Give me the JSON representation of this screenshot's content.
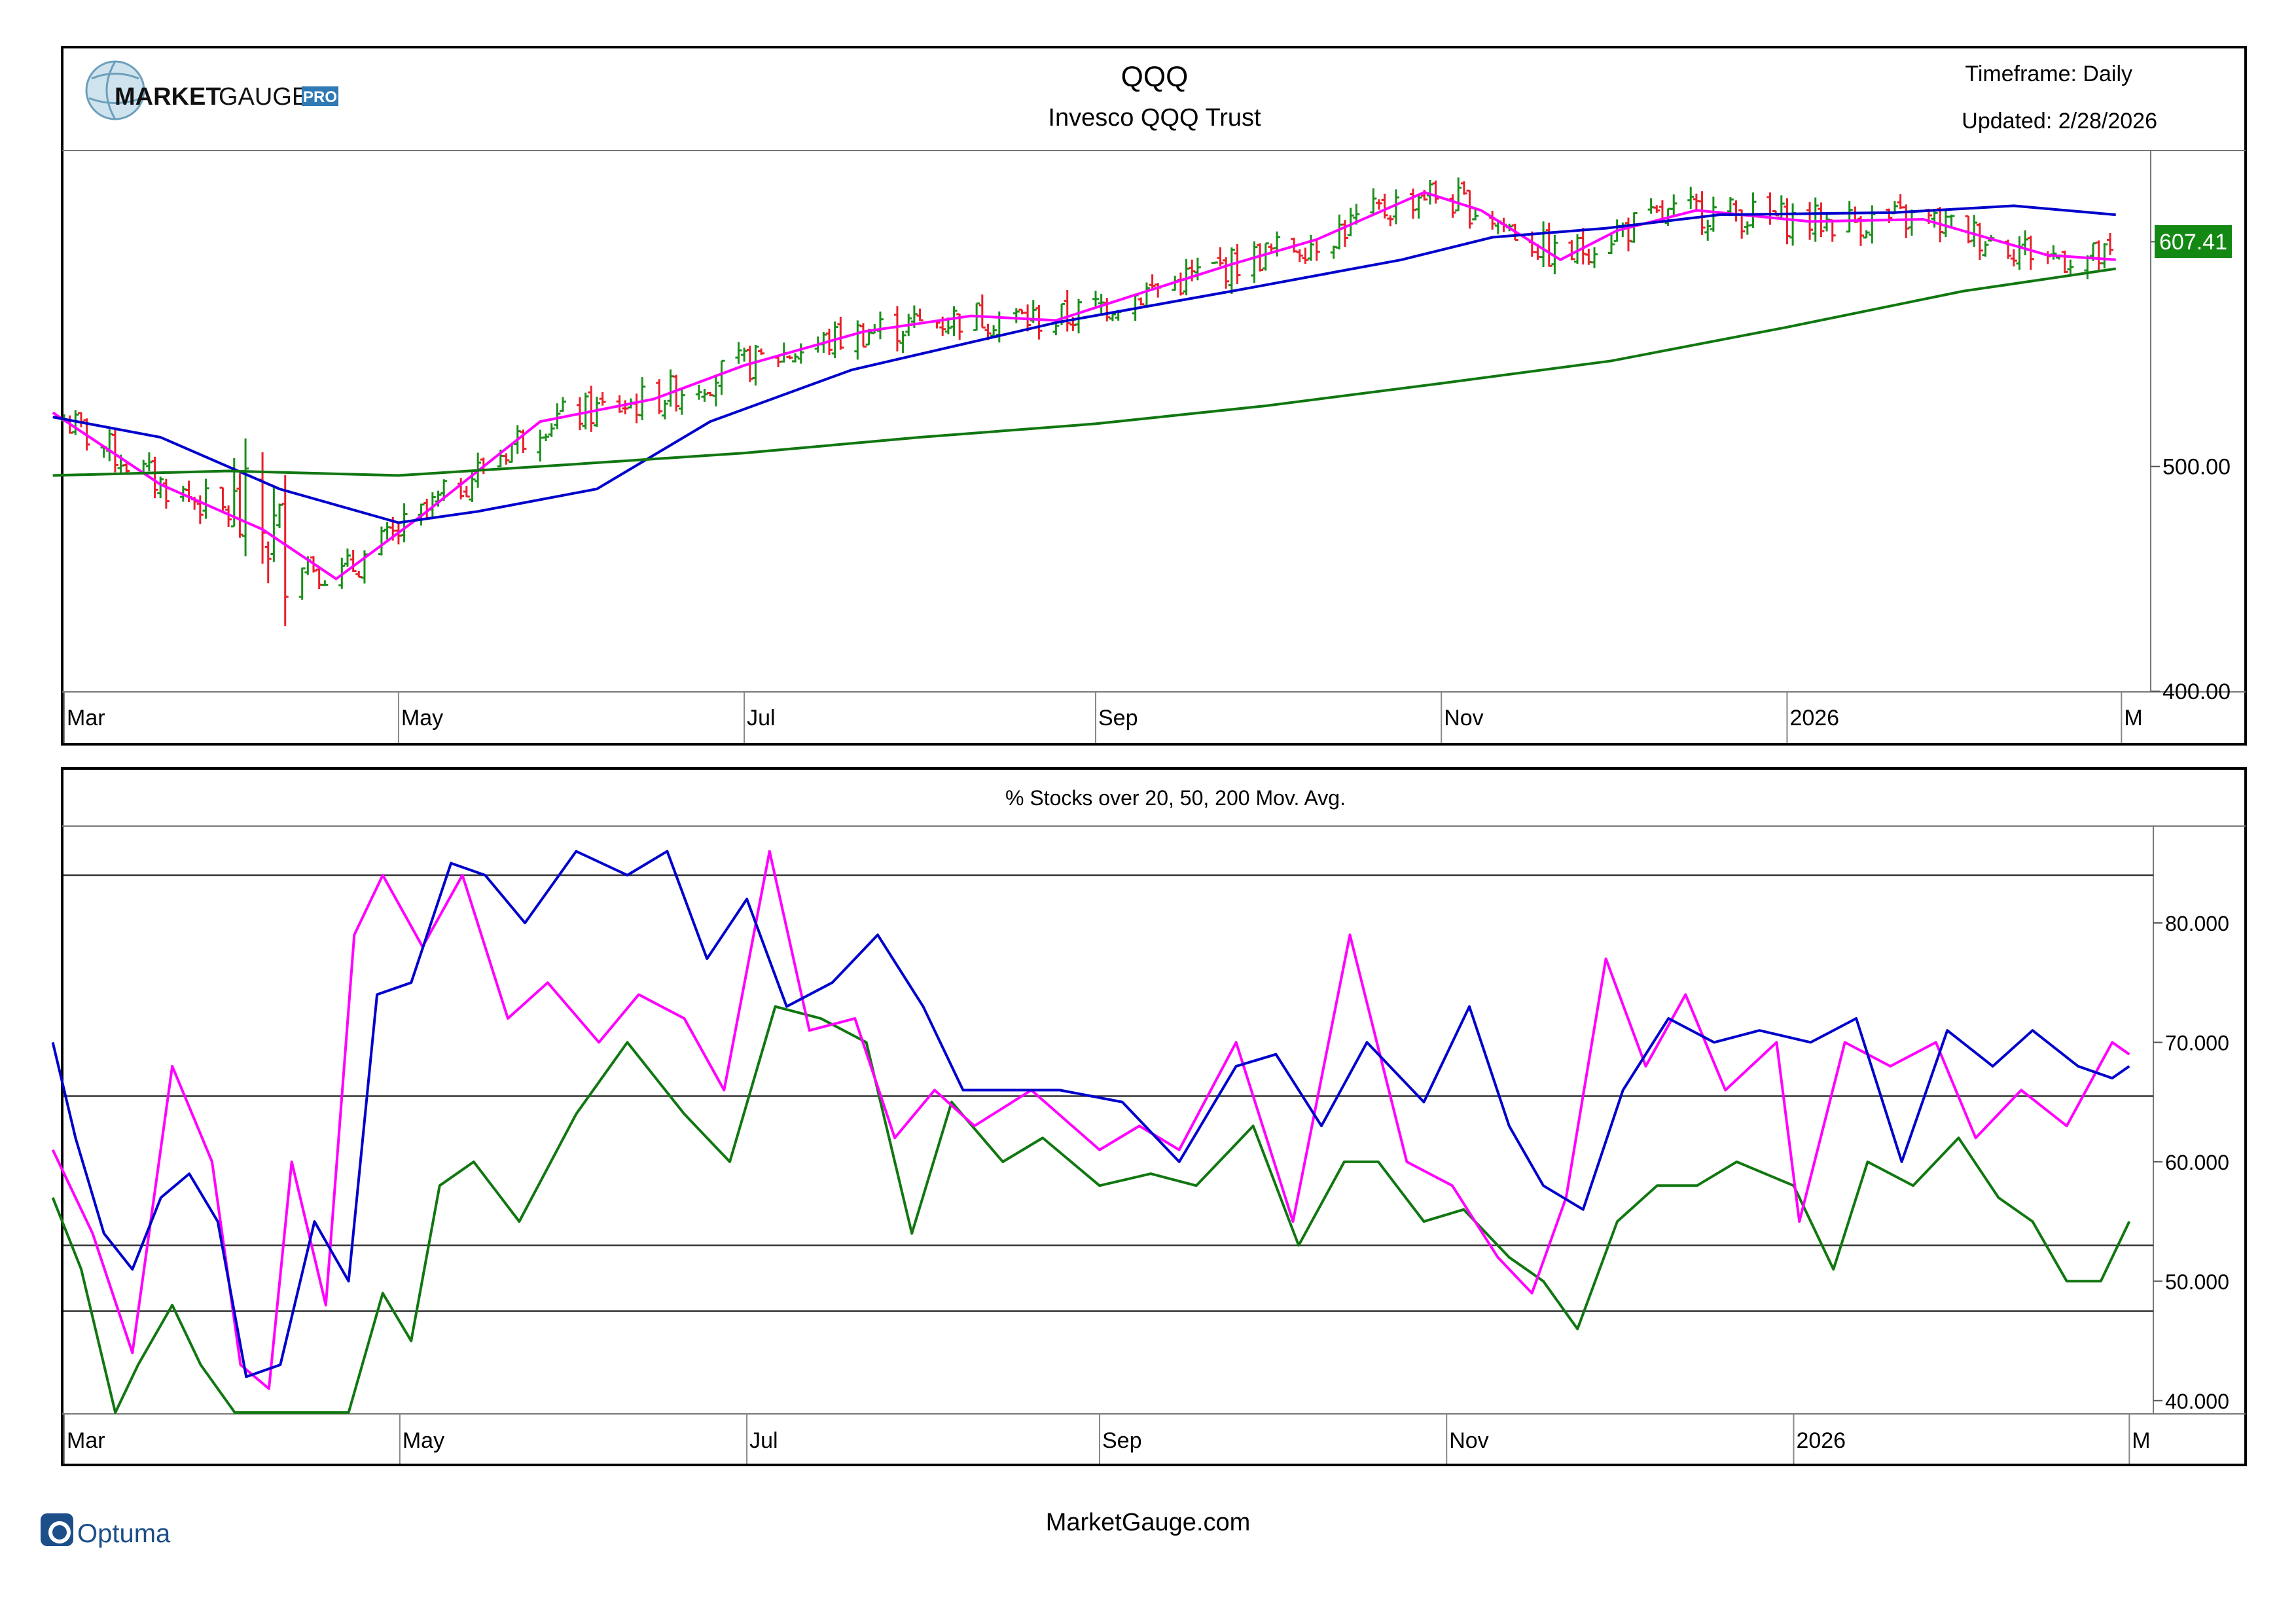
{
  "header": {
    "logo_text_bold": "MARKET",
    "logo_text_light": "GAUGE",
    "logo_badge": "PRO",
    "symbol": "QQQ",
    "name": "Invesco QQQ Trust",
    "timeframe": "Timeframe: Daily",
    "updated": "Updated: 2/28/2026"
  },
  "footer": {
    "brand": "Optuma",
    "site": "MarketGauge.com"
  },
  "colors": {
    "up_bar": "#1a8f1a",
    "down_bar": "#e8202a",
    "ma20": "#ff00ff",
    "ma50": "#0000cc",
    "ma200": "#117711",
    "pct20": "#ff00ff",
    "pct50": "#0000cc",
    "pct200": "#117711",
    "price_badge": "#138813"
  },
  "x_axis_labels": [
    "Mar",
    "May",
    "Jul",
    "Sep",
    "Nov",
    "2026",
    "M"
  ],
  "chart_data": [
    {
      "type": "bar",
      "subtype": "ohlc",
      "title": "QQQ",
      "subtitle": "Invesco QQQ Trust",
      "last_price_label": "607.41",
      "ylim": [
        400,
        640
      ],
      "yticks": [
        "600.00",
        "500.00",
        "400.00"
      ],
      "ytick_values": [
        600,
        500,
        400
      ],
      "x_range": [
        "2025-03-03",
        "2026-03-02"
      ],
      "legend": "none",
      "series": [
        {
          "role": "ma20",
          "x": [
            "2025-03-01",
            "2025-03-20",
            "2025-04-07",
            "2025-04-20",
            "2025-05-05",
            "2025-05-26",
            "2025-06-15",
            "2025-07-01",
            "2025-07-22",
            "2025-08-10",
            "2025-08-25",
            "2025-09-10",
            "2025-09-25",
            "2025-10-10",
            "2025-10-29",
            "2025-11-08",
            "2025-11-22",
            "2025-12-02",
            "2025-12-16",
            "2026-01-05",
            "2026-01-25",
            "2026-02-05",
            "2026-02-16",
            "2026-02-28"
          ],
          "values": [
            524,
            492,
            472,
            450,
            478,
            520,
            530,
            545,
            560,
            567,
            565,
            578,
            590,
            601,
            622,
            614,
            592,
            605,
            614,
            609,
            610,
            602,
            594,
            592
          ]
        },
        {
          "role": "ma50",
          "x": [
            "2025-03-01",
            "2025-03-20",
            "2025-04-10",
            "2025-05-01",
            "2025-05-15",
            "2025-06-05",
            "2025-06-25",
            "2025-07-20",
            "2025-08-25",
            "2025-09-25",
            "2025-10-25",
            "2025-11-10",
            "2025-11-30",
            "2025-12-20",
            "2026-01-20",
            "2026-02-10",
            "2026-02-28"
          ],
          "values": [
            522,
            513,
            490,
            475,
            480,
            490,
            520,
            543,
            564,
            578,
            592,
            602,
            606,
            612,
            613,
            616,
            612
          ]
        },
        {
          "role": "ma200",
          "x": [
            "2025-03-01",
            "2025-04-01",
            "2025-05-01",
            "2025-06-01",
            "2025-07-01",
            "2025-08-01",
            "2025-09-01",
            "2025-10-01",
            "2025-11-01",
            "2025-12-01",
            "2026-01-01",
            "2026-02-01",
            "2026-02-28"
          ],
          "values": [
            496,
            498,
            496,
            501,
            506,
            513,
            519,
            527,
            537,
            547,
            562,
            578,
            588
          ]
        }
      ]
    },
    {
      "type": "line",
      "title": "% Stocks over 20, 50, 200 Mov. Avg.",
      "ylim": [
        39,
        88
      ],
      "yticks": [
        "80.000",
        "70.000",
        "60.000",
        "50.000",
        "40.000"
      ],
      "ytick_values": [
        80,
        70,
        60,
        50,
        40
      ],
      "reference_lines": [
        84,
        65.5,
        53,
        47.5
      ],
      "x_range": [
        "2025-03-03",
        "2026-03-02"
      ],
      "legend": "none",
      "series": [
        {
          "role": "pct20",
          "x": [
            "2025-03-01",
            "2025-03-08",
            "2025-03-15",
            "2025-03-22",
            "2025-03-29",
            "2025-04-03",
            "2025-04-08",
            "2025-04-12",
            "2025-04-18",
            "2025-04-23",
            "2025-04-28",
            "2025-05-05",
            "2025-05-12",
            "2025-05-20",
            "2025-05-27",
            "2025-06-05",
            "2025-06-12",
            "2025-06-20",
            "2025-06-27",
            "2025-07-05",
            "2025-07-12",
            "2025-07-20",
            "2025-07-27",
            "2025-08-03",
            "2025-08-10",
            "2025-08-20",
            "2025-09-01",
            "2025-09-08",
            "2025-09-15",
            "2025-09-25",
            "2025-10-05",
            "2025-10-15",
            "2025-10-25",
            "2025-11-02",
            "2025-11-10",
            "2025-11-16",
            "2025-11-22",
            "2025-11-29",
            "2025-12-06",
            "2025-12-13",
            "2025-12-20",
            "2025-12-29",
            "2026-01-02",
            "2026-01-10",
            "2026-01-18",
            "2026-01-26",
            "2026-02-02",
            "2026-02-10",
            "2026-02-18",
            "2026-02-26",
            "2026-03-01"
          ],
          "values": [
            61,
            54,
            44,
            68,
            60,
            43,
            41,
            60,
            48,
            79,
            84,
            78,
            84,
            72,
            75,
            70,
            74,
            72,
            66,
            86,
            71,
            72,
            62,
            66,
            63,
            66,
            61,
            63,
            61,
            70,
            55,
            79,
            60,
            58,
            52,
            49,
            57,
            77,
            68,
            74,
            66,
            70,
            55,
            70,
            68,
            70,
            62,
            66,
            63,
            70,
            69
          ]
        },
        {
          "role": "pct50",
          "x": [
            "2025-03-01",
            "2025-03-05",
            "2025-03-10",
            "2025-03-15",
            "2025-03-20",
            "2025-03-25",
            "2025-03-30",
            "2025-04-04",
            "2025-04-10",
            "2025-04-16",
            "2025-04-22",
            "2025-04-27",
            "2025-05-03",
            "2025-05-10",
            "2025-05-16",
            "2025-05-23",
            "2025-06-01",
            "2025-06-10",
            "2025-06-17",
            "2025-06-24",
            "2025-07-01",
            "2025-07-08",
            "2025-07-16",
            "2025-07-24",
            "2025-08-01",
            "2025-08-08",
            "2025-08-15",
            "2025-08-25",
            "2025-09-05",
            "2025-09-15",
            "2025-09-25",
            "2025-10-02",
            "2025-10-10",
            "2025-10-18",
            "2025-10-28",
            "2025-11-05",
            "2025-11-12",
            "2025-11-18",
            "2025-11-25",
            "2025-12-02",
            "2025-12-10",
            "2025-12-18",
            "2025-12-26",
            "2026-01-04",
            "2026-01-12",
            "2026-01-20",
            "2026-01-28",
            "2026-02-05",
            "2026-02-12",
            "2026-02-20",
            "2026-02-26",
            "2026-03-01"
          ],
          "values": [
            70,
            62,
            54,
            51,
            57,
            59,
            55,
            42,
            43,
            55,
            50,
            74,
            75,
            85,
            84,
            80,
            86,
            84,
            86,
            77,
            82,
            73,
            75,
            79,
            73,
            66,
            66,
            66,
            65,
            60,
            68,
            69,
            63,
            70,
            65,
            73,
            63,
            58,
            56,
            66,
            72,
            70,
            71,
            70,
            72,
            60,
            71,
            68,
            71,
            68,
            67,
            68
          ]
        },
        {
          "role": "pct200",
          "x": [
            "2025-03-01",
            "2025-03-06",
            "2025-03-12",
            "2025-03-16",
            "2025-03-22",
            "2025-03-27",
            "2025-04-02",
            "2025-04-08",
            "2025-04-15",
            "2025-04-22",
            "2025-04-28",
            "2025-05-03",
            "2025-05-08",
            "2025-05-14",
            "2025-05-22",
            "2025-06-01",
            "2025-06-10",
            "2025-06-20",
            "2025-06-28",
            "2025-07-06",
            "2025-07-14",
            "2025-07-22",
            "2025-07-30",
            "2025-08-06",
            "2025-08-15",
            "2025-08-22",
            "2025-09-01",
            "2025-09-10",
            "2025-09-18",
            "2025-09-28",
            "2025-10-06",
            "2025-10-14",
            "2025-10-20",
            "2025-10-28",
            "2025-11-04",
            "2025-11-12",
            "2025-11-18",
            "2025-11-24",
            "2025-12-01",
            "2025-12-08",
            "2025-12-15",
            "2025-12-22",
            "2026-01-01",
            "2026-01-08",
            "2026-01-14",
            "2026-01-22",
            "2026-01-30",
            "2026-02-06",
            "2026-02-12",
            "2026-02-18",
            "2026-02-24",
            "2026-03-01"
          ],
          "values": [
            57,
            51,
            39,
            43,
            48,
            43,
            38,
            38,
            36,
            39,
            49,
            45,
            58,
            60,
            55,
            64,
            70,
            64,
            60,
            73,
            72,
            70,
            54,
            65,
            60,
            62,
            58,
            59,
            58,
            63,
            53,
            60,
            60,
            55,
            56,
            52,
            50,
            46,
            55,
            58,
            58,
            60,
            58,
            51,
            60,
            58,
            62,
            57,
            55,
            50,
            50,
            55
          ]
        }
      ]
    }
  ]
}
